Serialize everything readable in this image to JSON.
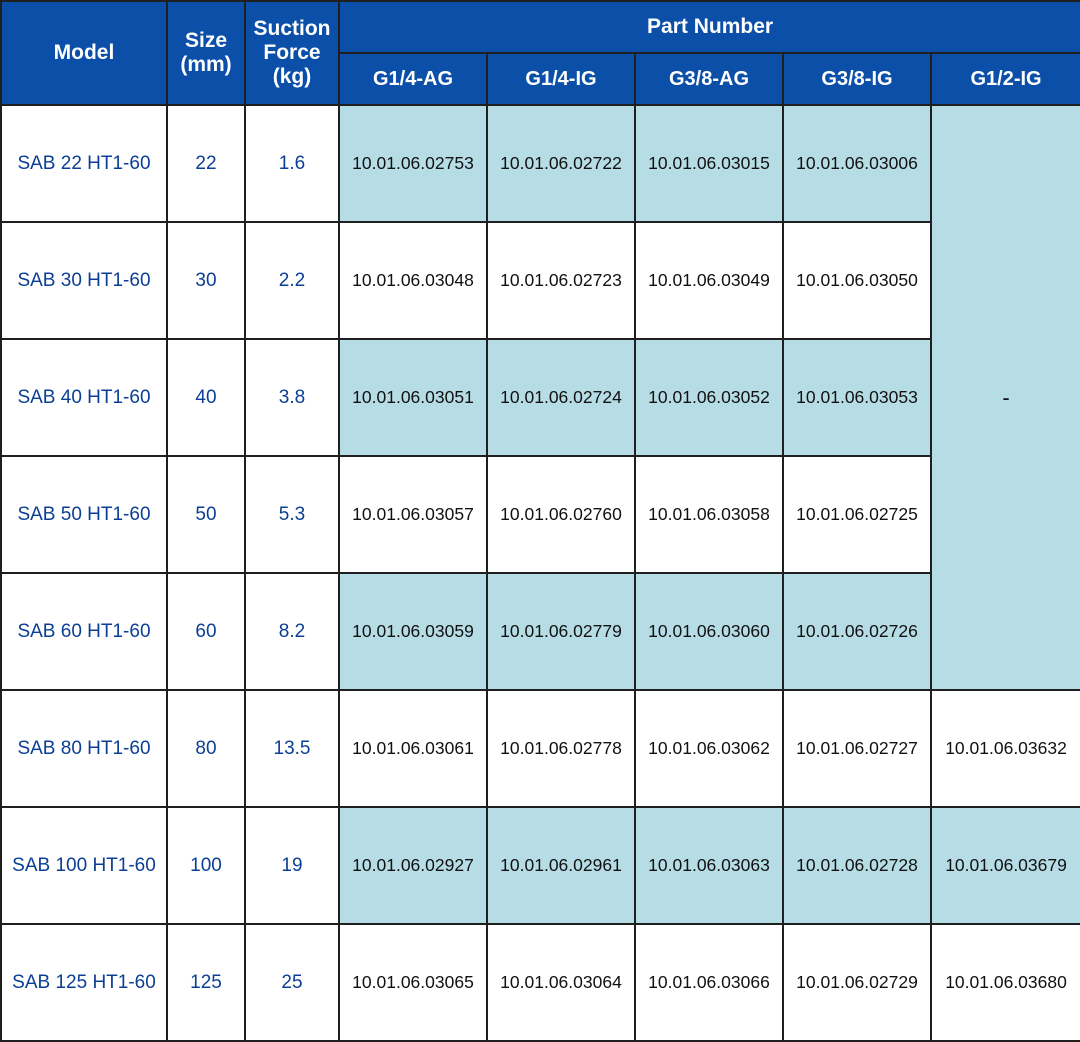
{
  "header": {
    "model": "Model",
    "size_line1": "Size",
    "size_line2": "(mm)",
    "force_line1": "Suction",
    "force_line2": "Force",
    "force_line3": "(kg)",
    "part_number": "Part Number",
    "variants": [
      "G1/4-AG",
      "G1/4-IG",
      "G3/8-AG",
      "G3/8-IG",
      "G1/2-IG"
    ]
  },
  "merged_placeholder": "-",
  "colors": {
    "header_bg": "#0b4fa8",
    "shade": "#b6dde6",
    "label_text": "#0b3f95"
  },
  "rows": [
    {
      "model": "SAB 22 HT1-60",
      "size": "22",
      "force": "1.6",
      "pn": [
        "10.01.06.02753",
        "10.01.06.02722",
        "10.01.06.03015",
        "10.01.06.03006"
      ]
    },
    {
      "model": "SAB 30 HT1-60",
      "size": "30",
      "force": "2.2",
      "pn": [
        "10.01.06.03048",
        "10.01.06.02723",
        "10.01.06.03049",
        "10.01.06.03050"
      ]
    },
    {
      "model": "SAB 40 HT1-60",
      "size": "40",
      "force": "3.8",
      "pn": [
        "10.01.06.03051",
        "10.01.06.02724",
        "10.01.06.03052",
        "10.01.06.03053"
      ]
    },
    {
      "model": "SAB 50 HT1-60",
      "size": "50",
      "force": "5.3",
      "pn": [
        "10.01.06.03057",
        "10.01.06.02760",
        "10.01.06.03058",
        "10.01.06.02725"
      ]
    },
    {
      "model": "SAB 60 HT1-60",
      "size": "60",
      "force": "8.2",
      "pn": [
        "10.01.06.03059",
        "10.01.06.02779",
        "10.01.06.03060",
        "10.01.06.02726"
      ]
    },
    {
      "model": "SAB 80 HT1-60",
      "size": "80",
      "force": "13.5",
      "pn": [
        "10.01.06.03061",
        "10.01.06.02778",
        "10.01.06.03062",
        "10.01.06.02727",
        "10.01.06.03632"
      ]
    },
    {
      "model": "SAB 100 HT1-60",
      "size": "100",
      "force": "19",
      "pn": [
        "10.01.06.02927",
        "10.01.06.02961",
        "10.01.06.03063",
        "10.01.06.02728",
        "10.01.06.03679"
      ]
    },
    {
      "model": "SAB 125 HT1-60",
      "size": "125",
      "force": "25",
      "pn": [
        "10.01.06.03065",
        "10.01.06.03064",
        "10.01.06.03066",
        "10.01.06.02729",
        "10.01.06.03680"
      ]
    }
  ]
}
